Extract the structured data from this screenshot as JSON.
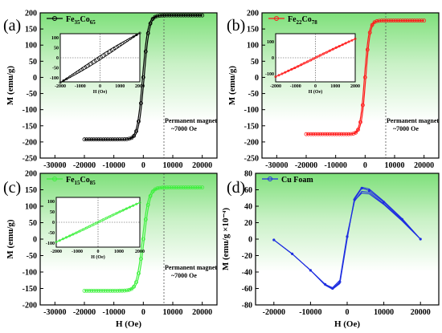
{
  "chart_data": [
    {
      "panel": "(a)",
      "type": "line",
      "legend": {
        "prefix": "Fe",
        "sub1": "35",
        "mid": "Co",
        "sub2": "65"
      },
      "color": "#000000",
      "xlabel": "H (Oe)",
      "ylabel": "M (emu/g)",
      "xlim": [
        -35000,
        25000
      ],
      "ylim": [
        -250,
        200
      ],
      "xticks": [
        -30000,
        -20000,
        -10000,
        0,
        10000,
        20000
      ],
      "xtick_labels": [
        "-30000",
        "-20000",
        "-10000",
        "0",
        "10000",
        "20000"
      ],
      "yticks": [
        -250,
        -200,
        -150,
        -100,
        -50,
        0,
        50,
        100,
        150,
        200
      ],
      "ytick_labels": [
        "-250",
        "-200",
        "-150",
        "-100",
        "-50",
        "0",
        "50",
        "100",
        "150",
        "200"
      ],
      "ms": 192,
      "hk": 1800,
      "vline_x": 7000,
      "annotation": {
        "line1": "Permanent magnet",
        "line2": "~7000 Oe"
      },
      "inset": {
        "xlim": [
          -2000,
          2000
        ],
        "ylim": [
          -120,
          120
        ],
        "xticks": [
          -2000,
          -1000,
          0,
          1000,
          2000
        ],
        "xtick_labels": [
          "-2000",
          "-1000",
          "0",
          "1000",
          "2000"
        ],
        "yticks": [
          -100,
          -50,
          0,
          50,
          100
        ],
        "ytick_labels": [
          "-100",
          "-50",
          "0",
          "50",
          "100"
        ],
        "xlabel": "H (Oe)",
        "slope": 0.065,
        "loop": 10
      }
    },
    {
      "panel": "(b)",
      "type": "line",
      "legend": {
        "prefix": "Fe",
        "sub1": "22",
        "mid": "Co",
        "sub2": "78"
      },
      "color": "#ff1a1a",
      "xlabel": "H (Oe)",
      "ylabel": "M (emu/g)",
      "xlim": [
        -35000,
        25000
      ],
      "ylim": [
        -250,
        200
      ],
      "xticks": [
        -30000,
        -20000,
        -10000,
        0,
        10000,
        20000
      ],
      "xtick_labels": [
        "-30000",
        "-20000",
        "-10000",
        "0",
        "10000",
        "20000"
      ],
      "yticks": [
        -250,
        -200,
        -150,
        -100,
        -50,
        0,
        50,
        100,
        150,
        200
      ],
      "ytick_labels": [
        "-250",
        "-200",
        "-150",
        "-100",
        "-50",
        "0",
        "50",
        "100",
        "150",
        "200"
      ],
      "ms": 176,
      "hk": 1500,
      "vline_x": 7000,
      "annotation": {
        "line1": "Permanent magnet",
        "line2": "~7000 Oe"
      },
      "inset": {
        "xlim": [
          -2000,
          2000
        ],
        "ylim": [
          -150,
          150
        ],
        "xticks": [
          -2000,
          -1000,
          0,
          1000,
          2000
        ],
        "xtick_labels": [
          "-2000",
          "-1000",
          "0",
          "1000",
          "2000"
        ],
        "yticks": [
          -100,
          0,
          100
        ],
        "ytick_labels": [
          "-100",
          "0",
          "100"
        ],
        "xlabel": "H (Oe)",
        "slope": 0.062,
        "loop": 4
      }
    },
    {
      "panel": "(c)",
      "type": "line",
      "legend": {
        "prefix": "Fe",
        "sub1": "15",
        "mid": "Co",
        "sub2": "85"
      },
      "color": "#3cf03c",
      "xlabel": "H (Oe)",
      "ylabel": "M (emu/g)",
      "xlim": [
        -35000,
        25000
      ],
      "ylim": [
        -200,
        200
      ],
      "xticks": [
        -30000,
        -20000,
        -10000,
        0,
        10000,
        20000
      ],
      "xtick_labels": [
        "-30000",
        "-20000",
        "-10000",
        "0",
        "10000",
        "20000"
      ],
      "yticks": [
        -200,
        -150,
        -100,
        -50,
        0,
        50,
        100,
        150,
        200
      ],
      "ytick_labels": [
        "-200",
        "-150",
        "-100",
        "-50",
        "0",
        "50",
        "100",
        "150",
        "200"
      ],
      "ms": 157,
      "hk": 2000,
      "vline_x": 7000,
      "annotation": {
        "line1": "Permanent magnet",
        "line2": "~7000 Oe"
      },
      "inset": {
        "xlim": [
          -2000,
          2000
        ],
        "ylim": [
          -120,
          120
        ],
        "xticks": [
          -2000,
          -1000,
          0,
          1000,
          2000
        ],
        "xtick_labels": [
          "-2000",
          "-1000",
          "0",
          "1000",
          "2000"
        ],
        "yticks": [
          -100,
          -50,
          0,
          50,
          100
        ],
        "ytick_labels": [
          "-100",
          "-50",
          "0",
          "50",
          "100"
        ],
        "xlabel": "H (Oe)",
        "slope": 0.05,
        "loop": 4
      }
    },
    {
      "panel": "(d)",
      "type": "line",
      "legend": {
        "label": "Cu Foam"
      },
      "color": "#1f2fe0",
      "xlabel": "H (Oe)",
      "ylabel": "M (emu/g ×10⁻⁴)",
      "xlim": [
        -25000,
        25000
      ],
      "ylim": [
        -80,
        80
      ],
      "xticks": [
        -20000,
        -10000,
        0,
        10000,
        20000
      ],
      "xtick_labels": [
        "-20000",
        "-10000",
        "0",
        "10000",
        "20000"
      ],
      "yticks": [
        -80,
        -60,
        -40,
        -20,
        0,
        20,
        40,
        60,
        80
      ],
      "ytick_labels": [
        "-80",
        "-60",
        "-40",
        "-20",
        "0",
        "20",
        "40",
        "60",
        "80"
      ],
      "x": [
        -20000,
        -15000,
        -10000,
        -6000,
        -4000,
        -2000,
        0,
        2000,
        4000,
        6000,
        10000,
        15000,
        20000
      ],
      "series": [
        {
          "y": [
            -1,
            -18,
            -38,
            -55,
            -60,
            -52,
            3,
            48,
            62,
            59,
            45,
            24,
            0
          ]
        },
        {
          "y": [
            -1,
            -18,
            -38,
            -55,
            -59,
            -50,
            5,
            46,
            58,
            57,
            43,
            23,
            0
          ]
        },
        {
          "y": [
            -1,
            -18,
            -38,
            -56,
            -61,
            -54,
            0,
            50,
            63,
            61,
            46,
            25,
            0
          ]
        },
        {
          "y": [
            -1,
            -18,
            -38,
            -55,
            -60,
            -53,
            2,
            47,
            56,
            55,
            42,
            22,
            0
          ]
        }
      ]
    }
  ]
}
